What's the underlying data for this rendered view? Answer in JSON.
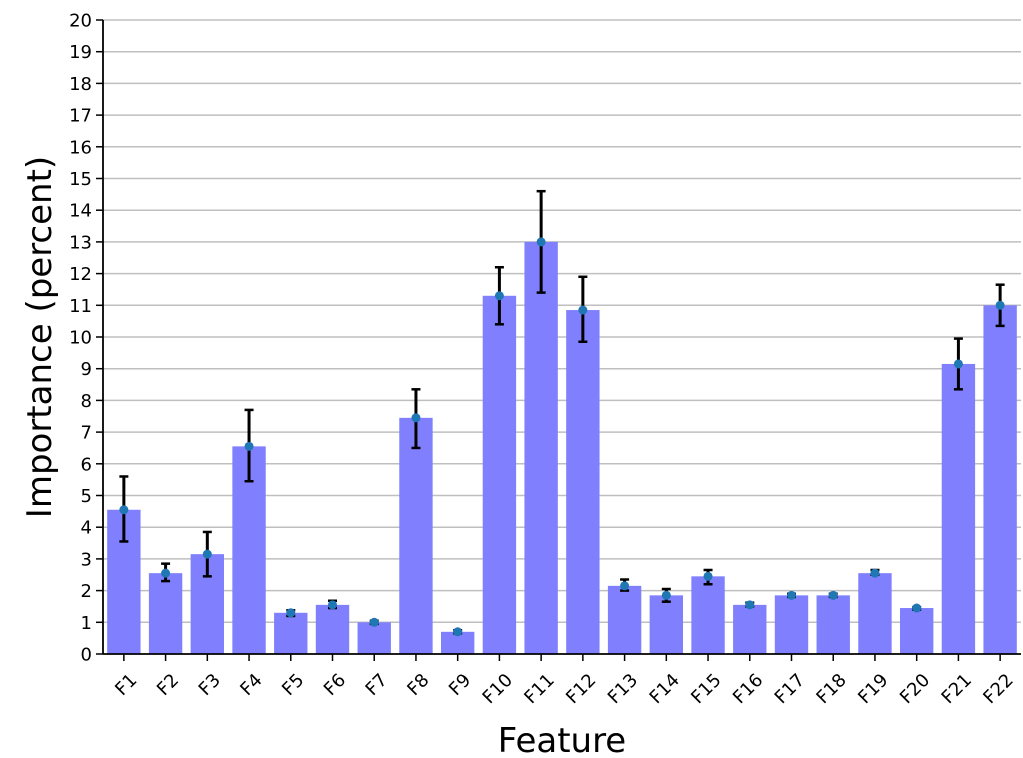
{
  "chart_data": {
    "type": "bar",
    "title": "",
    "xlabel": "Feature",
    "ylabel": "Importance (percent)",
    "ylim": [
      0,
      20
    ],
    "y_ticks": [
      0,
      1,
      2,
      3,
      4,
      5,
      6,
      7,
      8,
      9,
      10,
      11,
      12,
      13,
      14,
      15,
      16,
      17,
      18,
      19,
      20
    ],
    "grid": "horizontal",
    "categories": [
      "F1",
      "F2",
      "F3",
      "F4",
      "F5",
      "F6",
      "F7",
      "F8",
      "F9",
      "F10",
      "F11",
      "F12",
      "F13",
      "F14",
      "F15",
      "F16",
      "F17",
      "F18",
      "F19",
      "F20",
      "F21",
      "F22"
    ],
    "values": [
      4.55,
      2.55,
      3.15,
      6.55,
      1.3,
      1.55,
      1.0,
      7.45,
      0.7,
      11.3,
      13.0,
      10.85,
      2.15,
      1.85,
      2.45,
      1.55,
      1.85,
      1.85,
      2.55,
      1.45,
      9.15,
      11.0
    ],
    "error_low": [
      3.55,
      2.3,
      2.45,
      5.45,
      1.2,
      1.45,
      0.95,
      6.5,
      0.65,
      10.4,
      11.4,
      9.85,
      2.0,
      1.65,
      2.2,
      1.5,
      1.8,
      1.8,
      2.5,
      1.4,
      8.35,
      10.35
    ],
    "error_high": [
      5.6,
      2.85,
      3.85,
      7.7,
      1.38,
      1.68,
      1.05,
      8.35,
      0.75,
      12.2,
      14.6,
      11.9,
      2.35,
      2.05,
      2.65,
      1.62,
      1.9,
      1.9,
      2.65,
      1.48,
      9.95,
      11.65
    ],
    "colors": {
      "bar": "#8080ff",
      "point": "#1f77b4",
      "error_bar": "#000000",
      "grid": "#bfbfbf"
    }
  }
}
